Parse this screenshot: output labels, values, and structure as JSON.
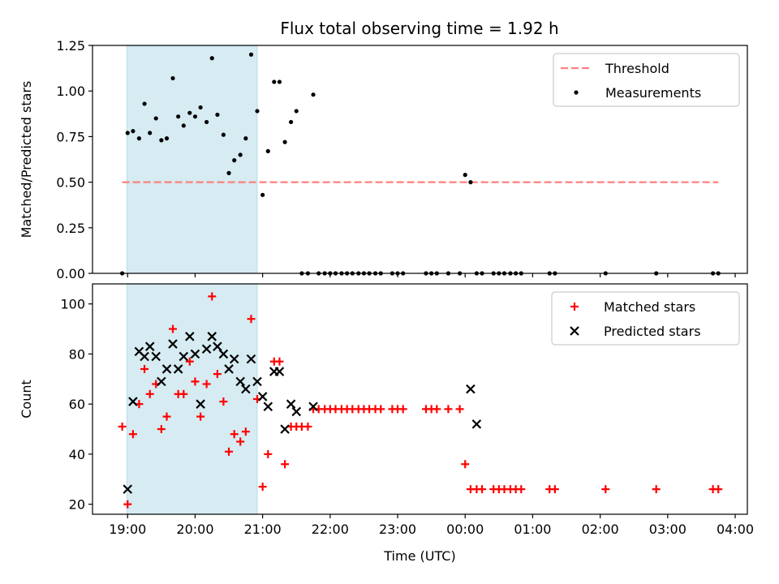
{
  "figure": {
    "title": "Flux total observing time = 1.92 h"
  },
  "chart_data": [
    {
      "type": "scatter",
      "ylabel": "Matched/Predicted stars",
      "xlabel": "",
      "ylim": [
        0,
        1.25
      ],
      "yticks": [
        0.0,
        0.25,
        0.5,
        0.75,
        1.0,
        1.25
      ],
      "ytick_labels": [
        "0.00",
        "0.25",
        "0.50",
        "0.75",
        "1.00",
        "1.25"
      ],
      "xlim": [
        18.48,
        28.18
      ],
      "xticks": [
        19,
        20,
        21,
        22,
        23,
        24,
        25,
        26,
        27,
        28
      ],
      "xtick_labels": [],
      "shaded_interval": {
        "x0": 18.99,
        "x1": 20.92,
        "color": "#add8e6"
      },
      "threshold": {
        "name": "Threshold",
        "y": 0.5,
        "x0": 18.92,
        "x1": 27.75,
        "color": "#ff7f7f",
        "style": "dashed"
      },
      "legend": {
        "placement": "top-right",
        "entries": [
          {
            "label": "Threshold",
            "marker": "dashed-line",
            "color": "#ff7f7f"
          },
          {
            "label": "Measurements",
            "marker": "dot",
            "color": "#000000"
          }
        ]
      },
      "series": [
        {
          "name": "Measurements",
          "color": "#000000",
          "x": [
            18.92,
            19.0,
            19.08,
            19.17,
            19.25,
            19.33,
            19.42,
            19.5,
            19.58,
            19.67,
            19.75,
            19.83,
            19.92,
            20.0,
            20.08,
            20.17,
            20.25,
            20.33,
            20.42,
            20.5,
            20.58,
            20.67,
            20.75,
            20.83,
            20.92,
            21.0,
            21.08,
            21.17,
            21.25,
            21.33,
            21.42,
            21.5,
            21.58,
            21.67,
            21.75,
            21.83,
            21.92,
            22.0,
            22.08,
            22.17,
            22.25,
            22.33,
            22.42,
            22.5,
            22.58,
            22.67,
            22.75,
            22.92,
            23.0,
            23.08,
            23.42,
            23.5,
            23.58,
            23.75,
            23.92,
            24.0,
            24.08,
            24.17,
            24.25,
            24.42,
            24.5,
            24.58,
            24.67,
            24.75,
            24.83,
            25.25,
            25.33,
            26.08,
            26.83,
            27.67,
            27.75
          ],
          "y": [
            0.0,
            0.77,
            0.78,
            0.74,
            0.93,
            0.77,
            0.85,
            0.73,
            0.74,
            1.07,
            0.86,
            0.81,
            0.88,
            0.86,
            0.91,
            0.83,
            1.18,
            0.87,
            0.76,
            0.55,
            0.62,
            0.65,
            0.74,
            1.2,
            0.89,
            0.43,
            0.67,
            1.05,
            1.05,
            0.72,
            0.83,
            0.89,
            0.0,
            0.0,
            0.98,
            0.0,
            0.0,
            0.0,
            0.0,
            0.0,
            0.0,
            0.0,
            0.0,
            0.0,
            0.0,
            0.0,
            0.0,
            0.0,
            0.0,
            0.0,
            0.0,
            0.0,
            0.0,
            0.0,
            0.0,
            0.54,
            0.5,
            0.0,
            0.0,
            0.0,
            0.0,
            0.0,
            0.0,
            0.0,
            0.0,
            0.0,
            0.0,
            0.0,
            0.0,
            0.0,
            0.0
          ]
        }
      ]
    },
    {
      "type": "scatter",
      "ylabel": "Count",
      "xlabel": "Time (UTC)",
      "ylim": [
        16,
        108
      ],
      "yticks": [
        20,
        40,
        60,
        80,
        100
      ],
      "ytick_labels": [
        "20",
        "40",
        "60",
        "80",
        "100"
      ],
      "xlim": [
        18.48,
        28.18
      ],
      "xticks": [
        19,
        20,
        21,
        22,
        23,
        24,
        25,
        26,
        27,
        28
      ],
      "xtick_labels": [
        "19:00",
        "20:00",
        "21:00",
        "22:00",
        "23:00",
        "00:00",
        "01:00",
        "02:00",
        "03:00",
        "04:00"
      ],
      "shaded_interval": {
        "x0": 18.99,
        "x1": 20.92,
        "color": "#add8e6"
      },
      "legend": {
        "placement": "top-right",
        "entries": [
          {
            "label": "Matched stars",
            "marker": "plus",
            "color": "#ff0000"
          },
          {
            "label": "Predicted stars",
            "marker": "x",
            "color": "#000000"
          }
        ]
      },
      "series": [
        {
          "name": "Matched stars",
          "marker": "plus",
          "color": "#ff0000",
          "x": [
            18.92,
            19.0,
            19.08,
            19.17,
            19.25,
            19.33,
            19.42,
            19.5,
            19.58,
            19.67,
            19.75,
            19.83,
            19.92,
            20.0,
            20.08,
            20.17,
            20.25,
            20.33,
            20.42,
            20.5,
            20.58,
            20.67,
            20.75,
            20.83,
            20.92,
            21.0,
            21.08,
            21.17,
            21.25,
            21.33,
            21.42,
            21.5,
            21.58,
            21.67,
            21.75,
            21.83,
            21.92,
            22.0,
            22.08,
            22.17,
            22.25,
            22.33,
            22.42,
            22.5,
            22.58,
            22.67,
            22.75,
            22.92,
            23.0,
            23.08,
            23.42,
            23.5,
            23.58,
            23.75,
            23.92,
            24.0,
            24.08,
            24.17,
            24.25,
            24.42,
            24.5,
            24.58,
            24.67,
            24.75,
            24.83,
            25.25,
            25.33,
            26.08,
            26.83,
            27.67,
            27.75
          ],
          "y": [
            51,
            20,
            48,
            60,
            74,
            64,
            68,
            50,
            55,
            90,
            64,
            64,
            77,
            69,
            55,
            68,
            103,
            72,
            61,
            41,
            48,
            45,
            49,
            94,
            62,
            27,
            40,
            77,
            77,
            36,
            51,
            51,
            51,
            51,
            58,
            58,
            58,
            58,
            58,
            58,
            58,
            58,
            58,
            58,
            58,
            58,
            58,
            58,
            58,
            58,
            58,
            58,
            58,
            58,
            58,
            36,
            26,
            26,
            26,
            26,
            26,
            26,
            26,
            26,
            26,
            26,
            26,
            26,
            26,
            26,
            26
          ]
        },
        {
          "name": "Predicted stars",
          "marker": "x",
          "color": "#000000",
          "x": [
            19.0,
            19.08,
            19.17,
            19.25,
            19.33,
            19.42,
            19.5,
            19.58,
            19.67,
            19.75,
            19.83,
            19.92,
            20.0,
            20.08,
            20.17,
            20.25,
            20.33,
            20.42,
            20.5,
            20.58,
            20.67,
            20.75,
            20.83,
            20.92,
            21.0,
            21.08,
            21.17,
            21.25,
            21.33,
            21.42,
            21.5,
            21.75,
            24.08,
            24.17
          ],
          "y": [
            26,
            61,
            81,
            79,
            83,
            79,
            69,
            74,
            84,
            74,
            79,
            87,
            80,
            60,
            82,
            87,
            83,
            80,
            74,
            78,
            69,
            66,
            78,
            69,
            63,
            59,
            73,
            73,
            50,
            60,
            57,
            59,
            66,
            52
          ]
        }
      ]
    }
  ]
}
